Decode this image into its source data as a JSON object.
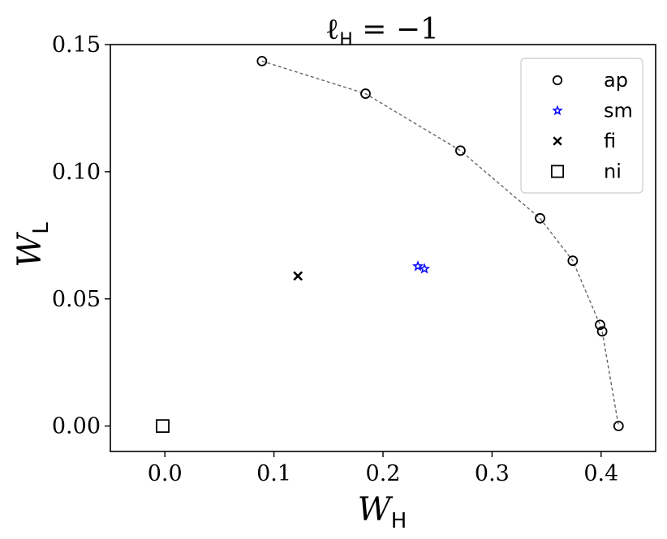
{
  "chart_data": {
    "type": "scatter",
    "title": {
      "base": "ℓ",
      "sub": "H",
      "rest": " = −1"
    },
    "xlabel": {
      "base": "W",
      "sub": "H"
    },
    "ylabel": {
      "base": "W",
      "sub": "L"
    },
    "xlim": [
      -0.05,
      0.45
    ],
    "ylim": [
      -0.01,
      0.15
    ],
    "xticks": [
      {
        "value": 0.0,
        "label": "0.0"
      },
      {
        "value": 0.1,
        "label": "0.1"
      },
      {
        "value": 0.2,
        "label": "0.2"
      },
      {
        "value": 0.3,
        "label": "0.3"
      },
      {
        "value": 0.4,
        "label": "0.4"
      }
    ],
    "yticks": [
      {
        "value": 0.0,
        "label": "0.00"
      },
      {
        "value": 0.05,
        "label": "0.05"
      },
      {
        "value": 0.1,
        "label": "0.10"
      },
      {
        "value": 0.15,
        "label": "0.15"
      }
    ],
    "grid": false,
    "legend_position": "top-right",
    "series": [
      {
        "name": "ap",
        "marker": "circle",
        "color": "#000000",
        "connected": true,
        "line_style": "dashed",
        "line_color": "#666666",
        "points": [
          [
            0.089,
            0.1435
          ],
          [
            0.184,
            0.1307
          ],
          [
            0.271,
            0.1083
          ],
          [
            0.344,
            0.0817
          ],
          [
            0.374,
            0.065
          ],
          [
            0.399,
            0.0398
          ],
          [
            0.401,
            0.0372
          ],
          [
            0.416,
            0.0
          ]
        ]
      },
      {
        "name": "sm",
        "marker": "star",
        "color": "#0000ff",
        "connected": false,
        "points": [
          [
            0.232,
            0.0628
          ],
          [
            0.238,
            0.0618
          ]
        ]
      },
      {
        "name": "fi",
        "marker": "x",
        "color": "#000000",
        "connected": false,
        "points": [
          [
            0.122,
            0.059
          ]
        ]
      },
      {
        "name": "ni",
        "marker": "square",
        "color": "#000000",
        "connected": false,
        "points": [
          [
            -0.002,
            0.0
          ]
        ]
      }
    ]
  }
}
